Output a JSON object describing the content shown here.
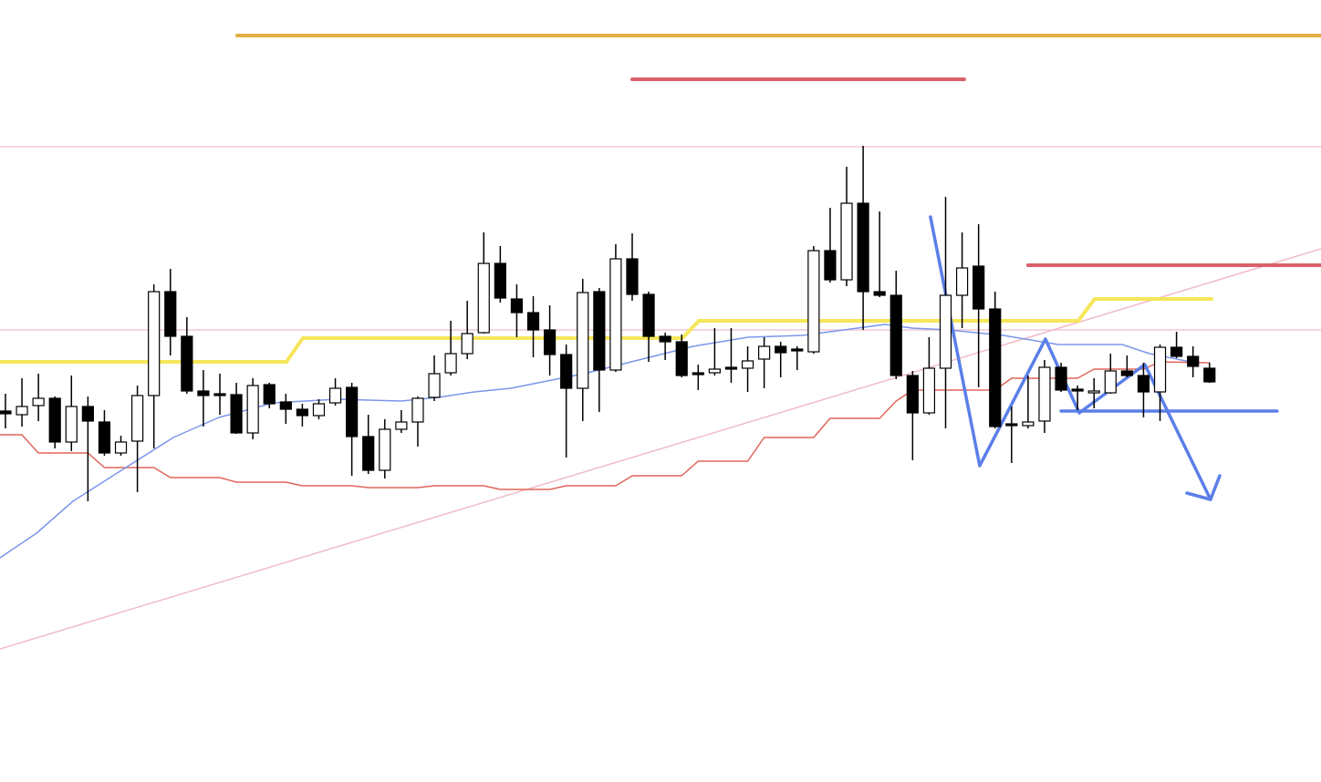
{
  "chart_data": {
    "type": "candlestick",
    "xlim": [
      -0.33,
      79.76
    ],
    "ylim": [
      0,
      858
    ],
    "up_color": "#ffffff",
    "down_color": "#000000",
    "edge_color": "#000000",
    "open": [
      407,
      403,
      413,
      421,
      373,
      412,
      395,
      361,
      374,
      424,
      538,
      489,
      429,
      426,
      425,
      383,
      436,
      417,
      409,
      402,
      416,
      433,
      379,
      342,
      387,
      395,
      422,
      449,
      470,
      493,
      569,
      530,
      515,
      496,
      469,
      432,
      538,
      452,
      574,
      535,
      489,
      483,
      449,
      449,
      455,
      454,
      464,
      478,
      475,
      472,
      583,
      551,
      635,
      538,
      534,
      446,
      405,
      454,
      534,
      566,
      519,
      393,
      391,
      396,
      455,
      431,
      427,
      427,
      451,
      446,
      428,
      477,
      467,
      454
    ],
    "high": [
      426,
      443,
      448,
      423,
      446,
      423,
      408,
      380,
      435,
      546,
      563,
      510,
      452,
      448,
      438,
      443,
      438,
      426,
      415,
      420,
      443,
      438,
      403,
      398,
      408,
      423,
      468,
      506,
      528,
      603,
      588,
      546,
      533,
      523,
      480,
      552,
      542,
      590,
      602,
      538,
      493,
      491,
      458,
      498,
      498,
      478,
      488,
      483,
      478,
      588,
      630,
      675,
      698,
      626,
      561,
      451,
      488,
      642,
      603,
      612,
      538,
      412,
      446,
      463,
      460,
      435,
      443,
      470,
      468,
      460,
      480,
      494,
      478,
      460
    ],
    "low": [
      388,
      390,
      396,
      366,
      363,
      308,
      358,
      358,
      318,
      366,
      468,
      426,
      390,
      403,
      382,
      376,
      410,
      393,
      390,
      398,
      413,
      336,
      338,
      333,
      383,
      368,
      418,
      446,
      464,
      492,
      526,
      488,
      466,
      446,
      356,
      396,
      406,
      450,
      528,
      461,
      463,
      444,
      430,
      446,
      438,
      428,
      432,
      444,
      452,
      470,
      548,
      544,
      496,
      532,
      442,
      353,
      403,
      388,
      498,
      433,
      388,
      350,
      388,
      383,
      428,
      408,
      410,
      426,
      444,
      400,
      396,
      465,
      444,
      438
    ],
    "close": [
      404,
      412,
      421,
      373,
      412,
      396,
      361,
      373,
      424,
      538,
      489,
      429,
      424,
      424,
      383,
      435,
      415,
      409,
      402,
      415,
      432,
      379,
      342,
      387,
      395,
      421,
      448,
      470,
      492,
      569,
      531,
      515,
      496,
      469,
      432,
      537,
      452,
      574,
      535,
      489,
      483,
      446,
      447,
      453,
      453,
      462,
      478,
      471,
      473,
      583,
      551,
      635,
      538,
      534,
      446,
      405,
      454,
      534,
      564,
      519,
      390,
      391,
      395,
      455,
      430,
      429,
      429,
      451,
      446,
      428,
      477,
      467,
      456,
      439
    ],
    "lines": [
      {
        "color": "#f0c8d2",
        "width": 1.5,
        "x": [
          -0.33,
          79.76
        ],
        "y": [
          697,
          697
        ]
      },
      {
        "color": "#f0c8d2",
        "width": 1.5,
        "x": [
          -0.33,
          79.76
        ],
        "y": [
          496,
          496
        ]
      },
      {
        "color": "#f0bcc8",
        "width": 1.5,
        "x": [
          -0.33,
          79.76
        ],
        "y": [
          146,
          585
        ]
      },
      {
        "color": "#e0b040",
        "width": 4,
        "x": [
          14.05,
          79.76
        ],
        "y": [
          819,
          819
        ]
      },
      {
        "color": "#d9606a",
        "width": 4,
        "x": [
          38.0,
          58.13
        ],
        "y": [
          771,
          771
        ]
      },
      {
        "color": "#d9606a",
        "width": 4,
        "x": [
          62.0,
          79.76
        ],
        "y": [
          567,
          567
        ]
      },
      {
        "color": "#f5e65a",
        "width": 4,
        "x": [
          -0.33,
          17.04,
          18.03,
          41.04,
          42.04,
          65.04,
          66.04,
          73.12
        ],
        "y": [
          461,
          461,
          487,
          487,
          506,
          506,
          530,
          530
        ]
      },
      {
        "color": "#e0665a",
        "width": 1.5,
        "x": [
          -0.33,
          1,
          2,
          5,
          6,
          9,
          10,
          13,
          14,
          17,
          18,
          21,
          22,
          25,
          26,
          29,
          30,
          33,
          34,
          37,
          38,
          41,
          42,
          45,
          46,
          49,
          50,
          53,
          54,
          55,
          60,
          61,
          65,
          66,
          69,
          70,
          73
        ],
        "y": [
          381,
          381,
          361,
          361,
          345,
          345,
          334,
          334,
          329,
          329,
          325,
          325,
          323,
          323,
          325,
          325,
          321,
          321,
          325,
          325,
          336,
          336,
          352,
          352,
          378,
          378,
          399,
          399,
          418,
          430,
          430,
          443,
          443,
          453,
          453,
          461,
          460
        ]
      },
      {
        "color": "#7b96ea",
        "width": 1.5,
        "x": [
          -0.33,
          1.88,
          4.09,
          6.86,
          10.18,
          12.94,
          16.26,
          20.13,
          24.0,
          26.22,
          28.43,
          30.64,
          32.85,
          35.07,
          38.39,
          41.7,
          45.02,
          48.34,
          51.66,
          53.32,
          54.98,
          57.19,
          60.51,
          63.83,
          67.7,
          69.36,
          72.12
        ],
        "y": [
          246,
          273,
          308,
          340,
          378,
          400,
          416,
          420,
          418,
          422,
          428,
          432,
          440,
          448,
          463,
          478,
          488,
          490,
          498,
          502,
          498,
          496,
          490,
          480,
          480,
          470,
          460
        ]
      },
      {
        "color": "#5b7fe8",
        "width": 3.5,
        "x": [
          64.0,
          77.1
        ],
        "y": [
          407,
          407
        ]
      },
      {
        "color": "#5b7fe8",
        "width": 3.5,
        "x": [
          56.08,
          59.07,
          63.05,
          65.1,
          69.08,
          73.06
        ],
        "y": [
          620,
          347,
          486,
          405,
          458,
          310
        ]
      },
      {
        "color": "#5b7fe8",
        "width": 3.5,
        "x": [
          71.63,
          73.06,
          73.62
        ],
        "y": [
          317,
          310,
          336
        ]
      }
    ]
  }
}
